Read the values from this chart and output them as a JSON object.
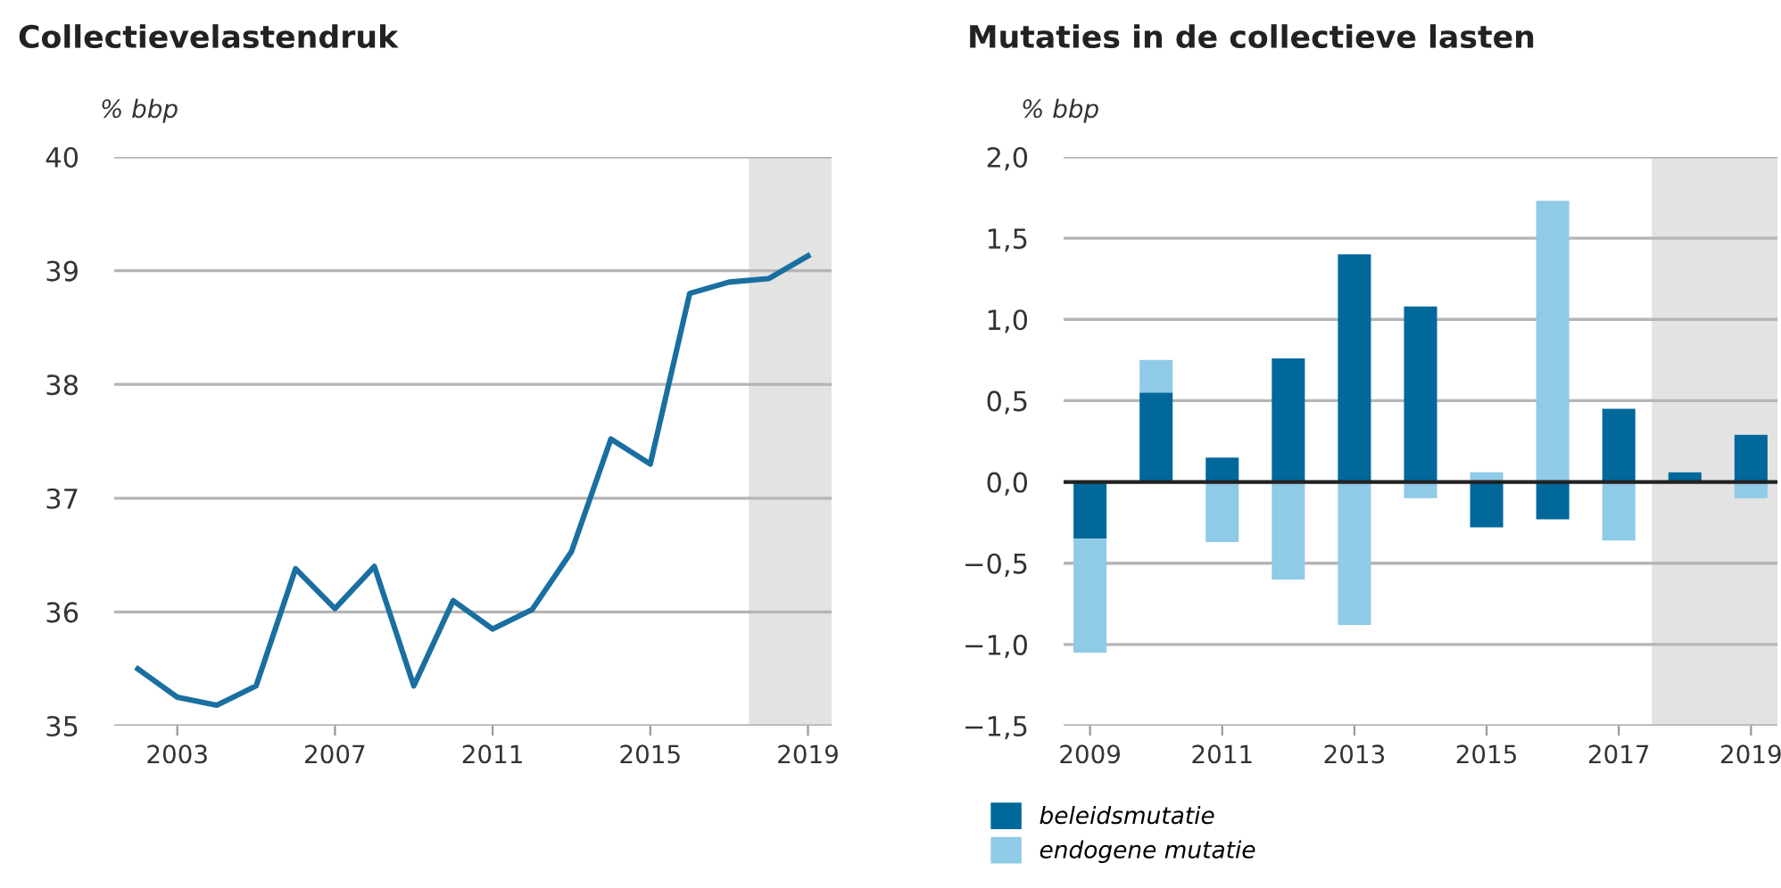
{
  "chart_data": [
    {
      "type": "line",
      "title": "Collectievelastendruk",
      "ylabel": "% bbp",
      "x": [
        2002,
        2003,
        2004,
        2005,
        2006,
        2007,
        2008,
        2009,
        2010,
        2011,
        2012,
        2013,
        2014,
        2015,
        2016,
        2017,
        2018,
        2019
      ],
      "series": [
        {
          "color": "#1a6fa0",
          "values": [
            35.5,
            35.25,
            35.18,
            35.35,
            36.38,
            36.03,
            36.4,
            35.35,
            36.1,
            35.85,
            36.02,
            36.53,
            37.52,
            37.3,
            38.8,
            38.9,
            38.93,
            39.13
          ]
        }
      ],
      "xlim": [
        2001.4,
        2019.6
      ],
      "xticks": [
        2003,
        2007,
        2011,
        2015,
        2019
      ],
      "ylim": [
        35,
        40
      ],
      "yticks": [
        35,
        36,
        37,
        38,
        39,
        40
      ],
      "grid": "y",
      "marker": "none",
      "line_style": "solid",
      "bands": [
        {
          "axis": "x",
          "from": 2017.5,
          "to": 2019.6,
          "color": "#e3e3e3"
        }
      ]
    },
    {
      "type": "bar",
      "title": "Mutaties in de collectieve lasten",
      "ylabel": "% bbp",
      "stacked": true,
      "x": [
        2009,
        2010,
        2011,
        2012,
        2013,
        2014,
        2015,
        2016,
        2017,
        2018,
        2019
      ],
      "series": [
        {
          "name": "beleidsmutatie",
          "color": "#01689b",
          "values": [
            -0.35,
            0.55,
            0.15,
            0.76,
            1.4,
            1.08,
            -0.28,
            -0.23,
            0.45,
            0.06,
            0.29
          ]
        },
        {
          "name": "endogene mutatie",
          "color": "#8fcae7",
          "values": [
            -0.7,
            0.2,
            -0.37,
            -0.6,
            -0.88,
            -0.1,
            0.06,
            1.73,
            -0.36,
            null,
            -0.1
          ]
        }
      ],
      "xlim": [
        2008.6,
        2019.4
      ],
      "xticks": [
        2009,
        2011,
        2013,
        2015,
        2017,
        2019
      ],
      "ylim": [
        -1.5,
        2.0
      ],
      "yticks": [
        {
          "value": -1.5,
          "label": "−1,5"
        },
        {
          "value": -1.0,
          "label": "−1,0"
        },
        {
          "value": -0.5,
          "label": "−0,5"
        },
        {
          "value": 0.0,
          "label": "0,0"
        },
        {
          "value": 0.5,
          "label": "0,5"
        },
        {
          "value": 1.0,
          "label": "1,0"
        },
        {
          "value": 1.5,
          "label": "1,5"
        },
        {
          "value": 2.0,
          "label": "2,0"
        }
      ],
      "grid": "y",
      "legend": "bottom left",
      "ref_lines": [
        {
          "axis": "y",
          "value": 0,
          "color": "#222222"
        }
      ],
      "bands": [
        {
          "axis": "x",
          "from": 2017.5,
          "to": 2019.4,
          "color": "#e3e3e3"
        }
      ]
    }
  ]
}
